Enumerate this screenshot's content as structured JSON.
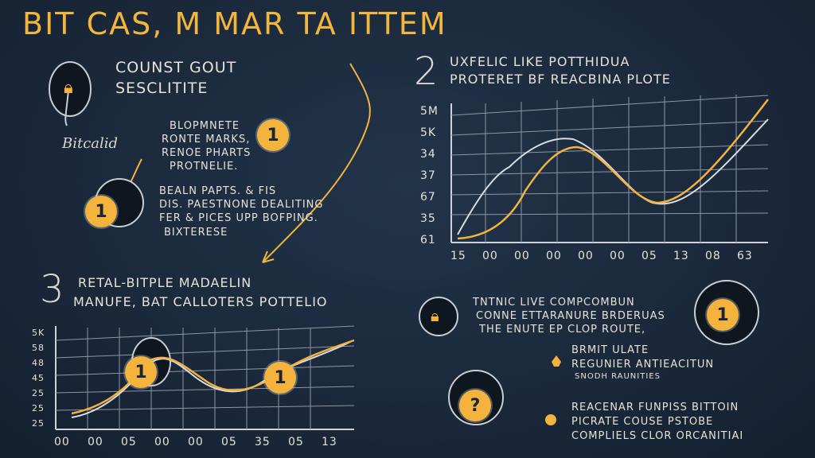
{
  "title": "BIT CAS, M MAR TA ITTEM",
  "top_left": {
    "lock_caption": "Bitcalid",
    "heading_lines": [
      "COUNST GOUT",
      "SESCLITITE"
    ],
    "badge": "1",
    "text_block_1": [
      "BLOPMNETE",
      "RONTE MARKS,",
      "RENOE PHARTS",
      "PROTNELIE."
    ],
    "badge2": "1",
    "text_block_2": [
      "BEALN PAPTS. & FIS",
      "DIS. PAESTNONE DEALITING",
      "FER & PICES UPP BOFPING.",
      "BIXTERESE"
    ]
  },
  "section2": {
    "number": "2",
    "heading_lines": [
      "UXFELIC LIKE POTTHIDUA",
      "PROTERET BF REACBINA PLOTE"
    ],
    "chart_data": {
      "type": "line",
      "y_tick_labels": [
        "5M",
        "5K",
        "34",
        "37",
        "67",
        "35",
        "61"
      ],
      "x_tick_labels": [
        "15",
        "00",
        "00",
        "00",
        "00",
        "00",
        "05",
        "13",
        "08",
        "63"
      ]
    }
  },
  "section3": {
    "number": "3",
    "heading_lines": [
      "RETAL-BITPLE MADAELIN",
      "MANUFE, BAT CALLOTERS POTTELIO"
    ],
    "badges": [
      "1",
      "1"
    ],
    "chart_data": {
      "type": "line",
      "y_tick_labels": [
        "5K",
        "58",
        "48",
        "45",
        "25",
        "25",
        "25"
      ],
      "x_tick_labels": [
        "00",
        "00",
        "05",
        "00",
        "00",
        "05",
        "35",
        "05",
        "13"
      ]
    }
  },
  "bottom_right": {
    "text_block_1": [
      "TNTNIC LIVE COMPCOMBUN",
      "CONNE ETTARANURE BRDERUAS",
      "THE ENUTE EP CLOP ROUTE,"
    ],
    "badge": "1",
    "question_badge": "?",
    "text_block_2": [
      "BRMIT ULATE",
      "REGUNIER ANTIEACITUN",
      "SNODH RAUNITIES"
    ],
    "text_block_3": [
      "REACENAR FUNPISS BITTOIN",
      "PICRATE COUSE PSTOBE",
      "COMPLIELS CLOR ORCANITIAI"
    ]
  },
  "colors": {
    "accent": "#f4b33d",
    "chalk": "#e6e2d6",
    "board": "#1b2a3b"
  }
}
